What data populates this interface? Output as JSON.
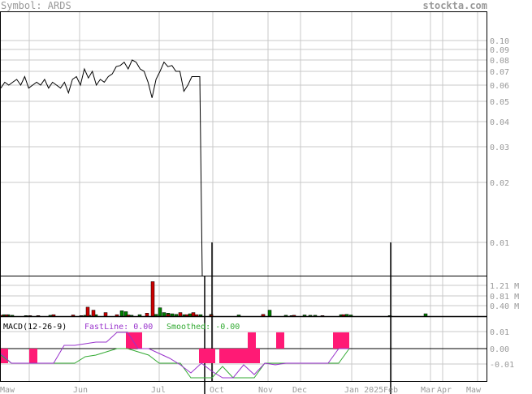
{
  "header": {
    "symbol_label": "Symbol: ARDS",
    "site": "stockta.com"
  },
  "colors": {
    "grid": "#c8c8c8",
    "frame": "#000000",
    "price_line": "#000000",
    "volume_up": "#008000",
    "volume_down": "#cc0000",
    "macd_bar": "#ff1a75",
    "fast_line": "#9933cc",
    "smoothed_line": "#33aa33"
  },
  "chart_data": [
    {
      "type": "line",
      "name": "price",
      "yscale": "log",
      "ylim": [
        0.008,
        0.105
      ],
      "y_ticks": [
        0.1,
        0.09,
        0.08,
        0.07,
        0.06,
        0.05,
        0.04,
        0.03,
        0.02,
        0.01
      ],
      "x_labels": [
        "Maw",
        "Jun",
        "Jul",
        "Oct",
        "Nov",
        "Dec",
        "Jan 2025",
        "Feb",
        "Mar",
        "Apr",
        "Maw"
      ],
      "series": [
        {
          "values": [
            0.058,
            0.062,
            0.06,
            0.062,
            0.064,
            0.06,
            0.066,
            0.058,
            0.06,
            0.062,
            0.06,
            0.064,
            0.058,
            0.062,
            0.06,
            0.058,
            0.062,
            0.055,
            0.064,
            0.066,
            0.06,
            0.072,
            0.065,
            0.07,
            0.06,
            0.064,
            0.062,
            0.066,
            0.068,
            0.074,
            0.075,
            0.078,
            0.072,
            0.08,
            0.078,
            0.072,
            0.07,
            0.062,
            0.052,
            0.064,
            0.07,
            0.078,
            0.074,
            0.075,
            0.07,
            0.07,
            0.056,
            0.06,
            0.066,
            0.066,
            0.066,
            0.0082
          ]
        }
      ]
    },
    {
      "type": "bar",
      "name": "volume",
      "ylim": [
        0,
        1.35
      ],
      "y_ticks": [
        "1.21 M",
        "0.81 M",
        "0.40 M"
      ],
      "y_tick_values": [
        1.21,
        0.81,
        0.4
      ],
      "series": [
        {
          "name": "up",
          "values": [
            0.05,
            0.05,
            0.03,
            0.02,
            0.03,
            0.03,
            0.03,
            0.05,
            0.18,
            0.15,
            0.03,
            0.05,
            0.06,
            0.28,
            0.12,
            0.1,
            0.08,
            0.06,
            0.05,
            0.08,
            0.05,
            0.06,
            0.04,
            0.04,
            0.2,
            0.03,
            0.02,
            0.04,
            0.03,
            0.03,
            0.05,
            0.06,
            0.04,
            0.02,
            0.08
          ]
        },
        {
          "name": "down",
          "values": [
            0.03,
            0.04,
            0.02,
            0.02,
            0.05,
            0.04,
            0.02,
            0.3,
            0.2,
            0.12,
            0.05,
            0.04,
            1.15,
            0.1,
            0.06,
            0.12,
            0.05,
            0.12,
            0.05,
            0.04,
            0.06,
            0.03,
            0.02,
            0.05
          ]
        }
      ]
    },
    {
      "type": "line",
      "name": "macd",
      "title": "MACD(12-26-9)",
      "fast_label": "FastLine: 0.00",
      "smoothed_label": "Smoothed: -0.00",
      "ylim": [
        -0.019,
        0.019
      ],
      "y_ticks": [
        "0.01",
        "0.00",
        "-0.01"
      ],
      "y_tick_values": [
        0.01,
        0.0,
        -0.01
      ],
      "series": [
        {
          "name": "FastLine",
          "values": [
            -0.003,
            -0.009,
            -0.009,
            -0.009,
            -0.009,
            -0.009,
            0.002,
            0.002,
            0.003,
            0.004,
            0.004,
            0.01,
            0.01,
            0.0,
            0.0,
            -0.003,
            -0.006,
            -0.01,
            -0.015,
            -0.009,
            -0.014,
            -0.018,
            -0.018,
            -0.01,
            -0.016,
            -0.009,
            -0.01,
            -0.009,
            -0.009,
            -0.009,
            -0.009,
            -0.009,
            0.0,
            0.0
          ]
        },
        {
          "name": "Smoothed",
          "values": [
            -0.004,
            -0.009,
            -0.009,
            -0.009,
            -0.009,
            -0.009,
            -0.009,
            -0.009,
            -0.005,
            -0.004,
            -0.002,
            0.0,
            0.0,
            -0.002,
            -0.004,
            -0.009,
            -0.009,
            -0.009,
            -0.018,
            -0.018,
            -0.018,
            -0.011,
            -0.018,
            -0.018,
            -0.018,
            -0.009,
            -0.009,
            -0.009,
            -0.009,
            -0.009,
            -0.009,
            -0.009,
            -0.009,
            0.0
          ]
        }
      ],
      "histogram": [
        -0.009,
        -0.009,
        0.0,
        0.0,
        0.0,
        0.0,
        0.0,
        0.0,
        0.0,
        0.01,
        0.01,
        0.0,
        0.0,
        0.0,
        0.0,
        -0.009,
        -0.009,
        -0.009,
        -0.009,
        -0.009,
        -0.009,
        -0.009,
        0.01,
        0.0,
        0.01,
        0.0,
        0.0,
        0.0,
        0.0,
        0.0,
        0.01,
        0.01,
        0.01,
        0.0
      ]
    }
  ]
}
